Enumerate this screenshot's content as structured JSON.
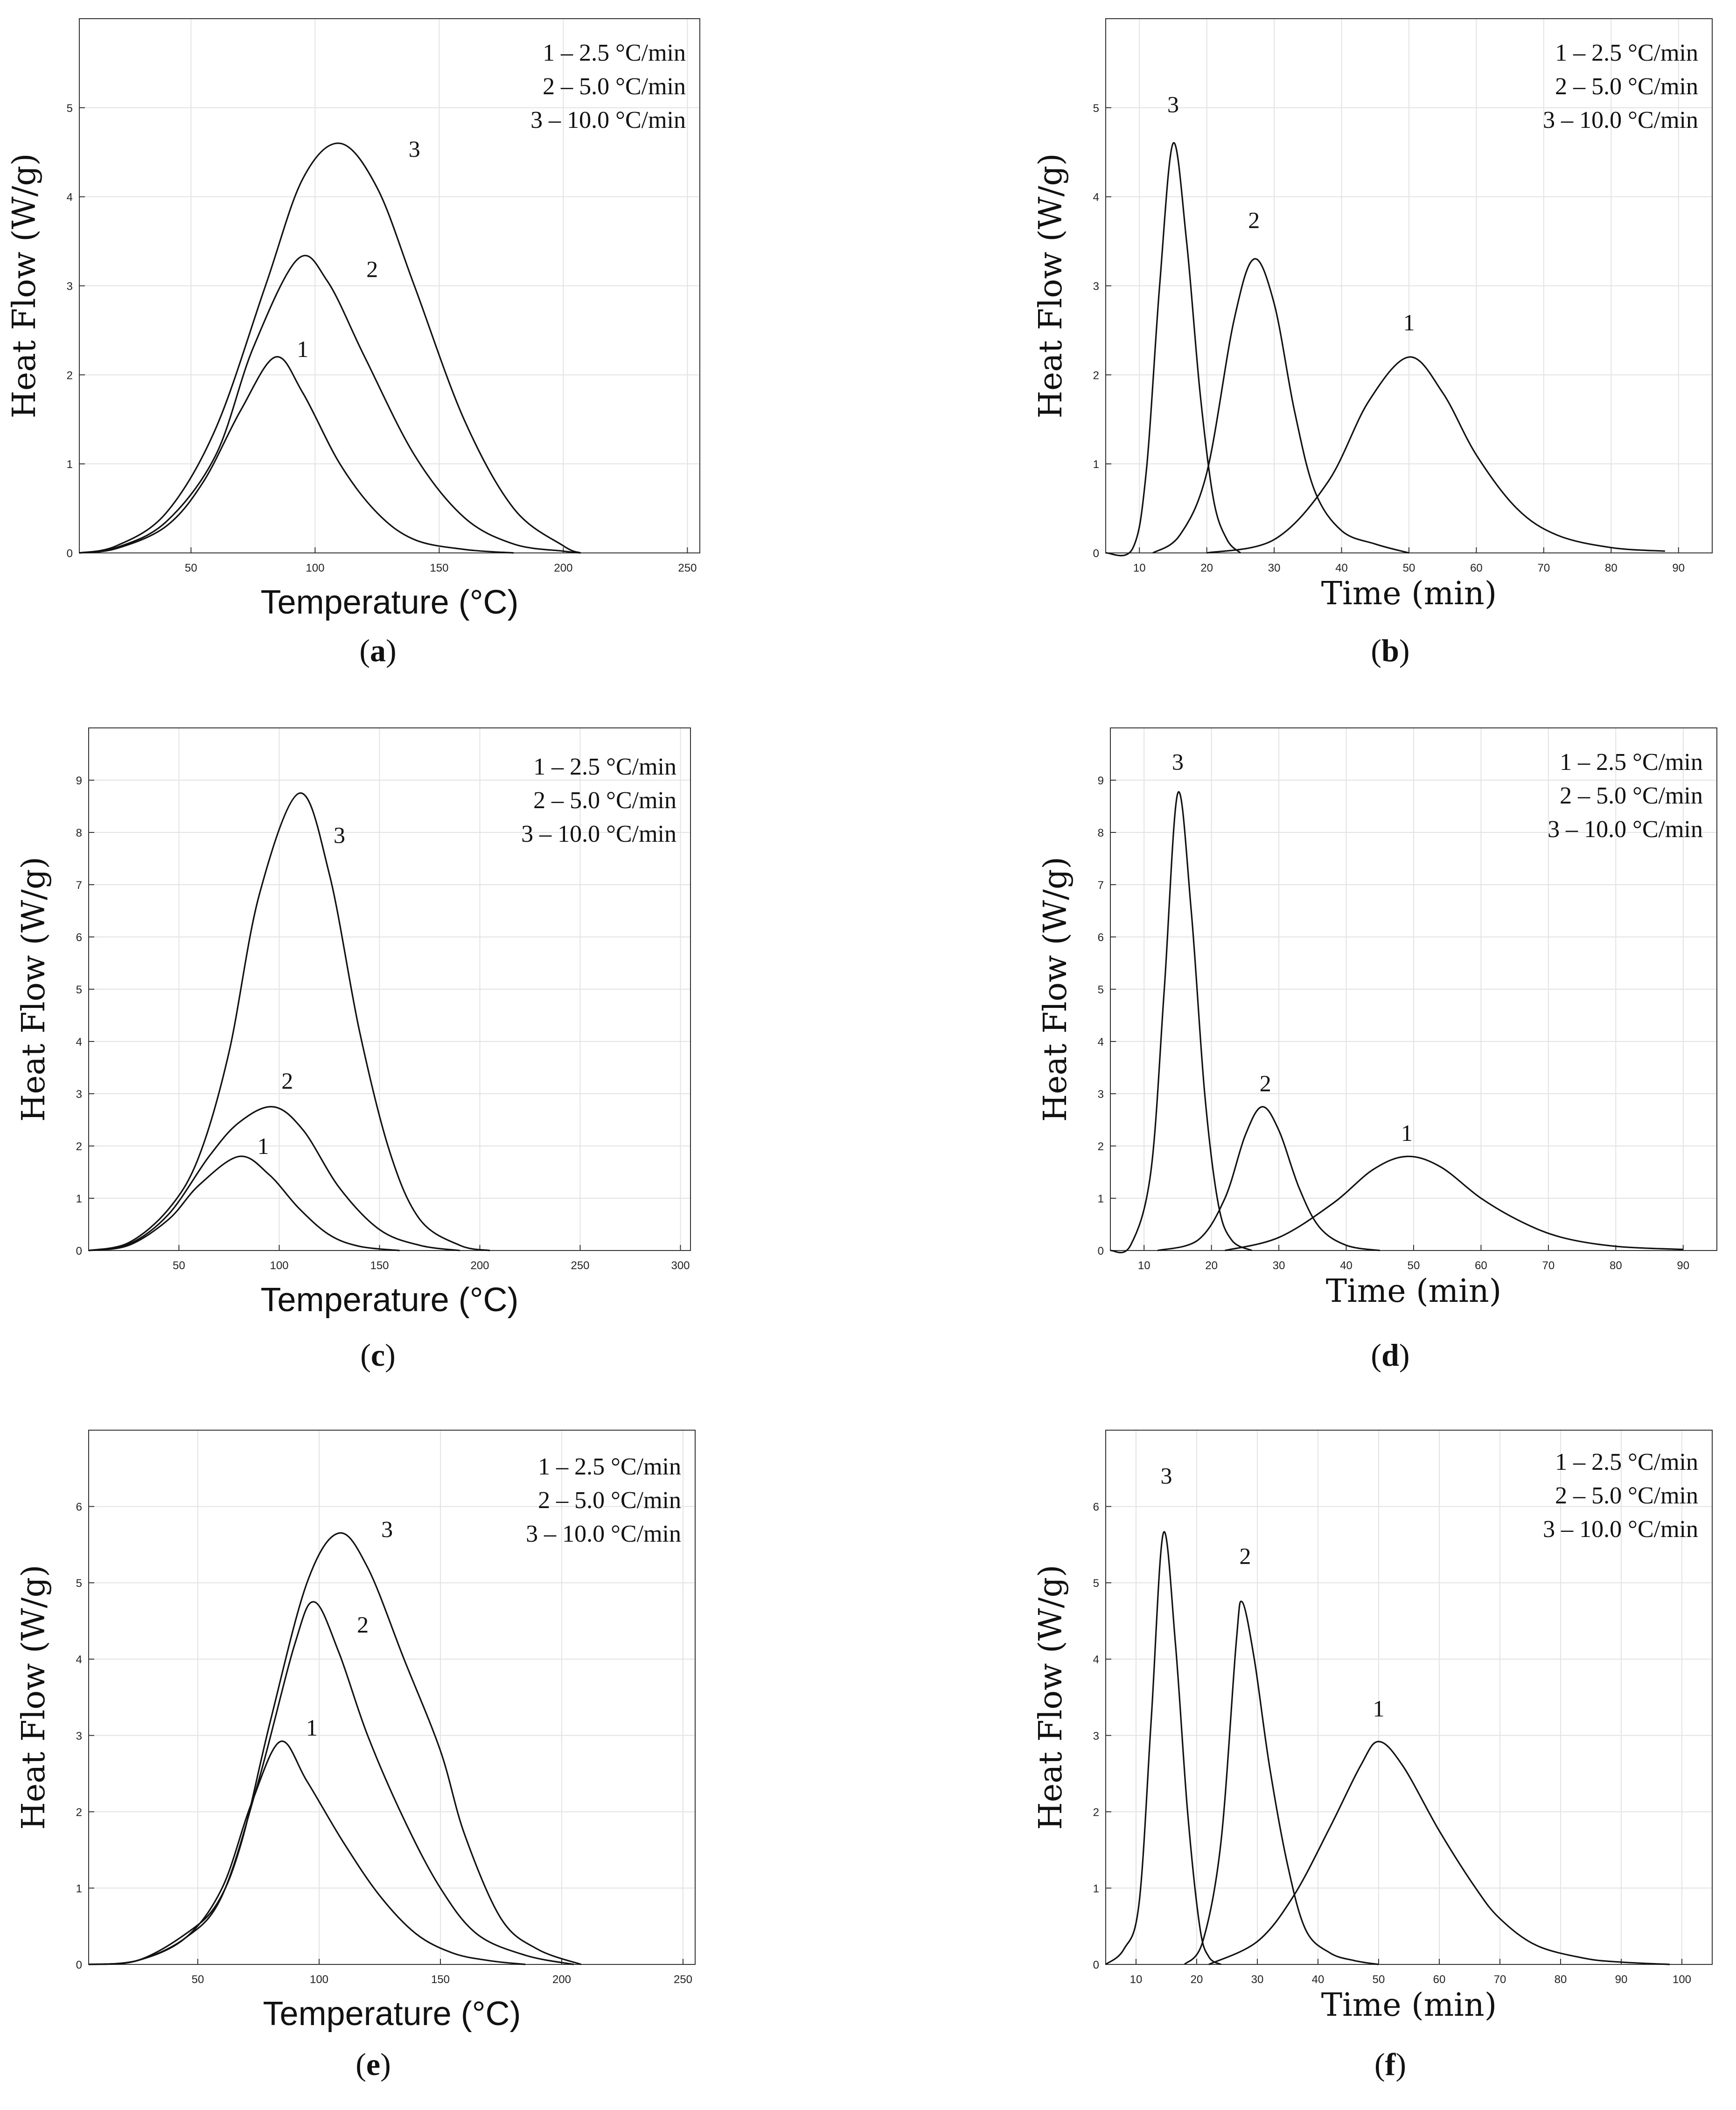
{
  "legend": [
    "1 – 2.5 °C/min",
    "2 – 5.0 °C/min",
    "3 – 10.0 °C/min"
  ],
  "chart_data": [
    {
      "id": "a",
      "type": "line",
      "caption": "a",
      "xlabel": "Temperature (°C)",
      "ylabel": "Heat Flow (W/g)",
      "xlim": [
        5,
        255
      ],
      "ylim": [
        0,
        6
      ],
      "xticks": [
        50,
        100,
        150,
        200,
        250
      ],
      "yticks": [
        0,
        1,
        2,
        3,
        4,
        5
      ],
      "grid": true,
      "legend_position": "top-right",
      "series": [
        {
          "name": "1",
          "values": [
            [
              5,
              0
            ],
            [
              20,
              0.05
            ],
            [
              40,
              0.3
            ],
            [
              55,
              0.8
            ],
            [
              70,
              1.6
            ],
            [
              84,
              2.2
            ],
            [
              95,
              1.8
            ],
            [
              110,
              1.0
            ],
            [
              125,
              0.45
            ],
            [
              140,
              0.15
            ],
            [
              160,
              0.04
            ],
            [
              180,
              0
            ]
          ],
          "label_at": [
            95,
            2.2
          ]
        },
        {
          "name": "2",
          "values": [
            [
              5,
              0
            ],
            [
              20,
              0.06
            ],
            [
              40,
              0.35
            ],
            [
              60,
              1.1
            ],
            [
              75,
              2.3
            ],
            [
              93,
              3.3
            ],
            [
              105,
              3.05
            ],
            [
              120,
              2.2
            ],
            [
              140,
              1.1
            ],
            [
              160,
              0.4
            ],
            [
              180,
              0.1
            ],
            [
              200,
              0.02
            ],
            [
              207,
              0
            ]
          ],
          "label_at": [
            123,
            3.1
          ]
        },
        {
          "name": "3",
          "values": [
            [
              5,
              0
            ],
            [
              20,
              0.08
            ],
            [
              40,
              0.45
            ],
            [
              60,
              1.4
            ],
            [
              80,
              3.0
            ],
            [
              95,
              4.2
            ],
            [
              110,
              4.6
            ],
            [
              125,
              4.1
            ],
            [
              140,
              3.0
            ],
            [
              160,
              1.5
            ],
            [
              180,
              0.5
            ],
            [
              200,
              0.08
            ],
            [
              207,
              0
            ]
          ],
          "label_at": [
            140,
            4.45
          ]
        }
      ]
    },
    {
      "id": "b",
      "type": "line",
      "caption": "b",
      "xlabel": "Time (min)",
      "ylabel": "Heat Flow (W/g)",
      "xlim": [
        5,
        95
      ],
      "ylim": [
        0,
        6
      ],
      "xticks": [
        10,
        20,
        30,
        40,
        50,
        60,
        70,
        80,
        90
      ],
      "yticks": [
        0,
        1,
        2,
        3,
        4,
        5
      ],
      "grid": true,
      "legend_position": "top-right",
      "series": [
        {
          "name": "3",
          "values": [
            [
              5,
              0
            ],
            [
              9,
              0.05
            ],
            [
              11,
              0.9
            ],
            [
              13,
              3.0
            ],
            [
              15,
              4.6
            ],
            [
              17,
              3.5
            ],
            [
              19,
              1.8
            ],
            [
              21,
              0.6
            ],
            [
              23,
              0.15
            ],
            [
              25,
              0
            ]
          ],
          "label_at": [
            15,
            4.95
          ]
        },
        {
          "name": "2",
          "values": [
            [
              12,
              0
            ],
            [
              16,
              0.2
            ],
            [
              20,
              0.9
            ],
            [
              24,
              2.6
            ],
            [
              27,
              3.3
            ],
            [
              30,
              2.8
            ],
            [
              33,
              1.6
            ],
            [
              36,
              0.7
            ],
            [
              40,
              0.25
            ],
            [
              45,
              0.1
            ],
            [
              50,
              0
            ]
          ],
          "label_at": [
            27,
            3.65
          ]
        },
        {
          "name": "1",
          "values": [
            [
              20,
              0
            ],
            [
              30,
              0.15
            ],
            [
              38,
              0.8
            ],
            [
              44,
              1.7
            ],
            [
              50,
              2.2
            ],
            [
              55,
              1.8
            ],
            [
              60,
              1.1
            ],
            [
              66,
              0.5
            ],
            [
              72,
              0.2
            ],
            [
              80,
              0.06
            ],
            [
              88,
              0.02
            ]
          ],
          "label_at": [
            50,
            2.5
          ]
        }
      ]
    },
    {
      "id": "c",
      "type": "line",
      "caption": "c",
      "xlabel": "Temperature (°C)",
      "ylabel": "Heat Flow (W/g)",
      "xlim": [
        5,
        305
      ],
      "ylim": [
        0,
        10
      ],
      "xticks": [
        50,
        100,
        150,
        200,
        250,
        300
      ],
      "yticks": [
        0,
        1,
        2,
        3,
        4,
        5,
        6,
        7,
        8,
        9
      ],
      "grid": true,
      "legend_position": "top-right",
      "series": [
        {
          "name": "1",
          "values": [
            [
              5,
              0
            ],
            [
              25,
              0.1
            ],
            [
              45,
              0.6
            ],
            [
              60,
              1.25
            ],
            [
              80,
              1.8
            ],
            [
              95,
              1.45
            ],
            [
              110,
              0.8
            ],
            [
              125,
              0.3
            ],
            [
              140,
              0.08
            ],
            [
              160,
              0
            ]
          ],
          "label_at": [
            92,
            1.85
          ]
        },
        {
          "name": "2",
          "values": [
            [
              5,
              0
            ],
            [
              25,
              0.12
            ],
            [
              45,
              0.7
            ],
            [
              65,
              1.8
            ],
            [
              80,
              2.45
            ],
            [
              97,
              2.75
            ],
            [
              112,
              2.3
            ],
            [
              130,
              1.2
            ],
            [
              150,
              0.4
            ],
            [
              170,
              0.1
            ],
            [
              190,
              0
            ]
          ],
          "label_at": [
            104,
            3.1
          ]
        },
        {
          "name": "3",
          "values": [
            [
              5,
              0
            ],
            [
              25,
              0.15
            ],
            [
              45,
              0.8
            ],
            [
              60,
              1.8
            ],
            [
              75,
              3.8
            ],
            [
              90,
              6.8
            ],
            [
              110,
              8.75
            ],
            [
              125,
              7.2
            ],
            [
              140,
              4.2
            ],
            [
              155,
              1.9
            ],
            [
              170,
              0.6
            ],
            [
              190,
              0.1
            ],
            [
              205,
              0
            ]
          ],
          "label_at": [
            130,
            7.8
          ]
        }
      ]
    },
    {
      "id": "d",
      "type": "line",
      "caption": "d",
      "xlabel": "Time (min)",
      "ylabel": "Heat Flow (W/g)",
      "xlim": [
        5,
        95
      ],
      "ylim": [
        0,
        10
      ],
      "xticks": [
        10,
        20,
        30,
        40,
        50,
        60,
        70,
        80,
        90
      ],
      "yticks": [
        0,
        1,
        2,
        3,
        4,
        5,
        6,
        7,
        8,
        9
      ],
      "grid": true,
      "legend_position": "top-right",
      "series": [
        {
          "name": "3",
          "values": [
            [
              5,
              0
            ],
            [
              8,
              0.1
            ],
            [
              11,
              1.5
            ],
            [
              13,
              5.0
            ],
            [
              15,
              8.75
            ],
            [
              17,
              6.5
            ],
            [
              19,
              3.0
            ],
            [
              21,
              0.9
            ],
            [
              23,
              0.2
            ],
            [
              26,
              0
            ]
          ],
          "label_at": [
            15,
            9.2
          ]
        },
        {
          "name": "2",
          "values": [
            [
              12,
              0
            ],
            [
              18,
              0.2
            ],
            [
              22,
              1.0
            ],
            [
              25,
              2.2
            ],
            [
              27.5,
              2.75
            ],
            [
              30,
              2.3
            ],
            [
              33,
              1.2
            ],
            [
              36,
              0.45
            ],
            [
              40,
              0.1
            ],
            [
              45,
              0
            ]
          ],
          "label_at": [
            28,
            3.05
          ]
        },
        {
          "name": "1",
          "values": [
            [
              22,
              0
            ],
            [
              30,
              0.25
            ],
            [
              38,
              0.9
            ],
            [
              44,
              1.55
            ],
            [
              49,
              1.8
            ],
            [
              54,
              1.6
            ],
            [
              60,
              1.0
            ],
            [
              66,
              0.55
            ],
            [
              72,
              0.25
            ],
            [
              80,
              0.08
            ],
            [
              90,
              0.02
            ]
          ],
          "label_at": [
            49,
            2.1
          ]
        }
      ]
    },
    {
      "id": "e",
      "type": "line",
      "caption": "e",
      "xlabel": "Temperature (°C)",
      "ylabel": "Heat Flow (W/g)",
      "xlim": [
        5,
        255
      ],
      "ylim": [
        0,
        7
      ],
      "xticks": [
        50,
        100,
        150,
        200,
        250
      ],
      "yticks": [
        0,
        1,
        2,
        3,
        4,
        5,
        6
      ],
      "grid": true,
      "legend_position": "top-right",
      "series": [
        {
          "name": "1",
          "values": [
            [
              5,
              0
            ],
            [
              25,
              0.05
            ],
            [
              45,
              0.35
            ],
            [
              60,
              1.0
            ],
            [
              72,
              2.1
            ],
            [
              84,
              2.92
            ],
            [
              95,
              2.4
            ],
            [
              110,
              1.6
            ],
            [
              125,
              0.9
            ],
            [
              140,
              0.4
            ],
            [
              155,
              0.15
            ],
            [
              170,
              0.05
            ],
            [
              185,
              0
            ]
          ],
          "label_at": [
            97,
            3.0
          ]
        },
        {
          "name": "2",
          "values": [
            [
              5,
              0
            ],
            [
              25,
              0.05
            ],
            [
              45,
              0.35
            ],
            [
              60,
              0.9
            ],
            [
              75,
              2.4
            ],
            [
              90,
              4.2
            ],
            [
              98,
              4.75
            ],
            [
              108,
              4.1
            ],
            [
              120,
              3.0
            ],
            [
              135,
              1.9
            ],
            [
              150,
              1.0
            ],
            [
              165,
              0.4
            ],
            [
              185,
              0.12
            ],
            [
              205,
              0
            ]
          ],
          "label_at": [
            118,
            4.35
          ]
        },
        {
          "name": "3",
          "values": [
            [
              5,
              0
            ],
            [
              25,
              0.05
            ],
            [
              45,
              0.4
            ],
            [
              58,
              0.8
            ],
            [
              68,
              1.6
            ],
            [
              80,
              3.2
            ],
            [
              95,
              5.0
            ],
            [
              108,
              5.65
            ],
            [
              120,
              5.2
            ],
            [
              135,
              4.0
            ],
            [
              150,
              2.8
            ],
            [
              160,
              1.7
            ],
            [
              175,
              0.6
            ],
            [
              190,
              0.2
            ],
            [
              208,
              0
            ]
          ],
          "label_at": [
            128,
            5.6
          ]
        }
      ]
    },
    {
      "id": "f",
      "type": "line",
      "caption": "f",
      "xlabel": "Time (min)",
      "ylabel": "Heat Flow (W/g)",
      "xlim": [
        5,
        105
      ],
      "ylim": [
        0,
        7
      ],
      "xticks": [
        10,
        20,
        30,
        40,
        50,
        60,
        70,
        80,
        90,
        100
      ],
      "yticks": [
        0,
        1,
        2,
        3,
        4,
        5,
        6
      ],
      "grid": true,
      "legend_position": "top-right",
      "series": [
        {
          "name": "3",
          "values": [
            [
              5,
              0
            ],
            [
              8,
              0.2
            ],
            [
              10.5,
              0.8
            ],
            [
              12.5,
              3.2
            ],
            [
              14.5,
              5.65
            ],
            [
              16.5,
              4.2
            ],
            [
              18.5,
              2.0
            ],
            [
              20.5,
              0.5
            ],
            [
              22,
              0.1
            ],
            [
              24,
              0
            ]
          ],
          "label_at": [
            15,
            6.3
          ]
        },
        {
          "name": "2",
          "values": [
            [
              18,
              0
            ],
            [
              21,
              0.3
            ],
            [
              24,
              1.6
            ],
            [
              26.5,
              4.2
            ],
            [
              27.5,
              4.75
            ],
            [
              29.5,
              4.0
            ],
            [
              32,
              2.6
            ],
            [
              35,
              1.3
            ],
            [
              38,
              0.45
            ],
            [
              42,
              0.15
            ],
            [
              46,
              0.05
            ],
            [
              50,
              0
            ]
          ],
          "label_at": [
            28,
            5.25
          ]
        },
        {
          "name": "1",
          "values": [
            [
              22,
              0
            ],
            [
              30,
              0.3
            ],
            [
              36,
              0.9
            ],
            [
              42,
              1.8
            ],
            [
              47,
              2.6
            ],
            [
              50,
              2.92
            ],
            [
              54,
              2.6
            ],
            [
              60,
              1.75
            ],
            [
              66,
              1.0
            ],
            [
              70,
              0.6
            ],
            [
              76,
              0.25
            ],
            [
              84,
              0.08
            ],
            [
              90,
              0.03
            ],
            [
              98,
              0
            ]
          ],
          "label_at": [
            50,
            3.25
          ]
        }
      ]
    }
  ]
}
